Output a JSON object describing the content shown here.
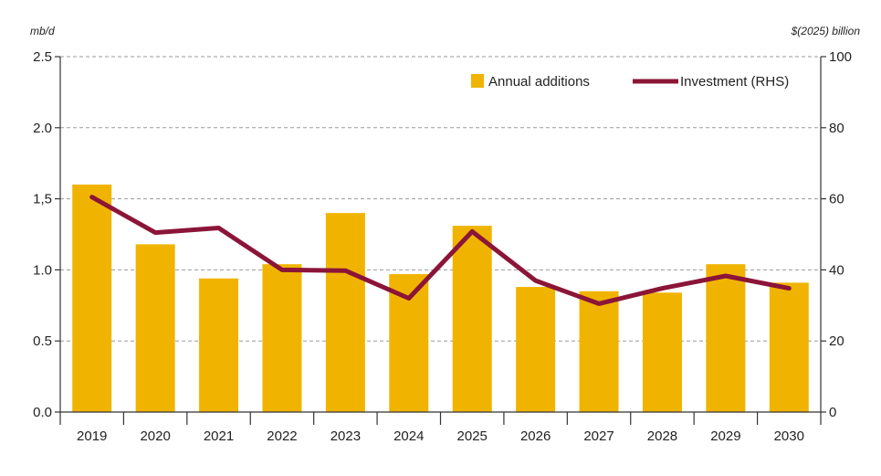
{
  "chart_data": {
    "type": "bar",
    "title": "",
    "categories": [
      "2019",
      "2020",
      "2021",
      "2022",
      "2023",
      "2024",
      "2025",
      "2026",
      "2027",
      "2028",
      "2029",
      "2030"
    ],
    "left_axis": {
      "unit": "mb/d",
      "ylim": [
        0,
        2.5
      ],
      "ticks": [
        "0.0",
        "0.5",
        "1.0",
        "1,5",
        "2.0",
        "2.5"
      ]
    },
    "right_axis": {
      "unit": "$(2025) billion",
      "ylim": [
        0,
        100
      ],
      "ticks": [
        "0",
        "20",
        "40",
        "60",
        "80",
        "100"
      ]
    },
    "series": [
      {
        "name": "Annual additions",
        "type": "bar",
        "axis": "left",
        "color": "#F0B400",
        "values": [
          1.6,
          1.18,
          0.94,
          1.04,
          1.4,
          0.97,
          1.31,
          0.88,
          0.85,
          0.84,
          1.04,
          0.91
        ]
      },
      {
        "name": "Investment (RHS)",
        "type": "line",
        "axis": "right",
        "color": "#8B1538",
        "values": [
          60.5,
          50.5,
          51.8,
          40.0,
          39.8,
          32.0,
          50.8,
          37.0,
          30.5,
          34.8,
          38.3,
          34.8
        ]
      }
    ],
    "grid": true,
    "legend_position": "top-right"
  }
}
